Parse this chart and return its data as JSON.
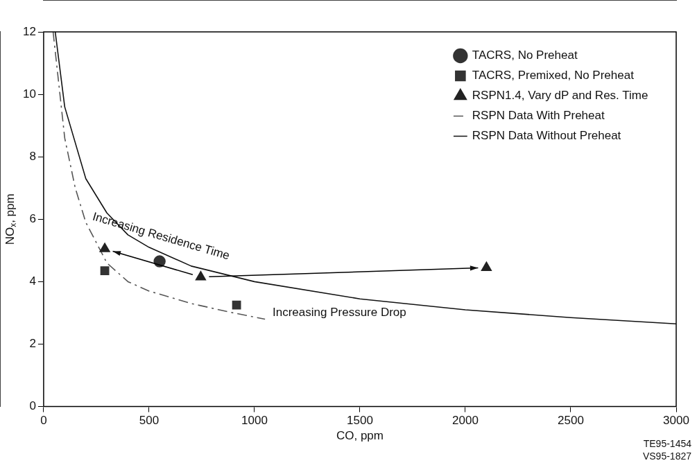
{
  "chart_data": {
    "type": "scatter",
    "xlabel": "CO, ppm",
    "ylabel": "NO$_{x}$, ppm",
    "xlim": [
      0,
      3000
    ],
    "xticks": [
      0,
      500,
      1000,
      1500,
      2000,
      2500,
      3000
    ],
    "ylim": [
      0,
      12
    ],
    "yticks": [
      0,
      2,
      4,
      6,
      8,
      10,
      12
    ],
    "grid": false,
    "legend": "top right",
    "series": [
      {
        "name": "TACRS, No Preheat",
        "marker": "circle",
        "color": "#333333",
        "x": [
          550
        ],
        "values": [
          4.65
        ]
      },
      {
        "name": "TACRS, Premixed, No Preheat",
        "marker": "square",
        "color": "#333333",
        "x": [
          290,
          915
        ],
        "values": [
          4.35,
          3.25
        ]
      },
      {
        "name": "RSPN1.4, Vary dP and Res. Time",
        "marker": "triangle",
        "color": "#222222",
        "x": [
          290,
          745,
          2100
        ],
        "values": [
          5.05,
          4.15,
          4.45
        ]
      },
      {
        "name": "RSPN Data With Preheat",
        "type": "line",
        "marker": "none",
        "line_style": "dashed",
        "color": "#555555",
        "x": [
          45,
          100,
          150,
          200,
          300,
          400,
          500,
          700,
          900,
          1050
        ],
        "values": [
          12,
          8.6,
          7.0,
          5.9,
          4.6,
          4.0,
          3.7,
          3.3,
          3.0,
          2.8
        ]
      },
      {
        "name": "RSPN Data Without Preheat",
        "type": "line",
        "marker": "none",
        "line_style": "solid",
        "color": "#111111",
        "x": [
          55,
          100,
          200,
          300,
          400,
          500,
          700,
          1000,
          1500,
          2000,
          2500,
          3000
        ],
        "values": [
          12,
          9.6,
          7.3,
          6.2,
          5.5,
          5.1,
          4.5,
          4.0,
          3.45,
          3.1,
          2.85,
          2.65
        ]
      }
    ],
    "annotations": [
      "Increasing Residence Time",
      "Increasing Pressure Drop",
      "TE95-1454",
      "VS95-1827"
    ]
  }
}
